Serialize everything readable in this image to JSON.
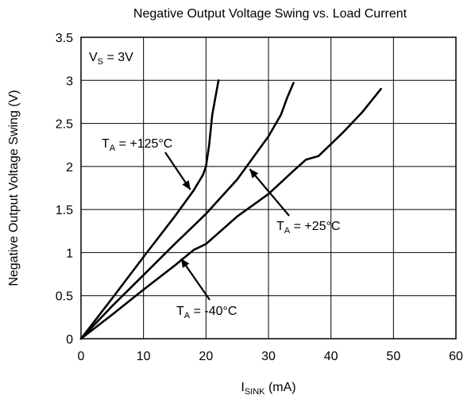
{
  "chart_data": {
    "type": "line",
    "title": "Negative Output Voltage Swing vs. Load Current",
    "xlabel": {
      "main": "I",
      "sub": "SINK",
      "rest": " (mA)"
    },
    "ylabel": "Negative Output Voltage Swing (V)",
    "xlim": [
      0,
      60
    ],
    "ylim": [
      0,
      3.5
    ],
    "xticks": [
      "0",
      "10",
      "20",
      "30",
      "40",
      "50",
      "60"
    ],
    "yticks": [
      "0",
      "0.5",
      "1",
      "1.5",
      "2",
      "2.5",
      "3",
      "3.5"
    ],
    "grid": true,
    "legend": "none",
    "condition_label": {
      "main": "V",
      "sub": "S",
      "rest": " = 3V"
    },
    "series": [
      {
        "name": "TA = +125°C",
        "x": [
          0,
          5,
          10,
          15,
          18,
          19.5,
          20,
          20.5,
          21,
          22
        ],
        "y": [
          0,
          0.47,
          0.95,
          1.42,
          1.72,
          1.9,
          2.0,
          2.25,
          2.6,
          3.0
        ]
      },
      {
        "name": "TA = +25°C",
        "x": [
          0,
          5,
          10,
          15,
          20,
          25,
          30,
          32,
          33,
          34
        ],
        "y": [
          0,
          0.38,
          0.74,
          1.1,
          1.45,
          1.85,
          2.35,
          2.6,
          2.8,
          2.97
        ]
      },
      {
        "name": "TA = -40°C",
        "x": [
          0,
          5,
          10,
          15,
          18,
          20,
          25,
          30,
          34,
          36,
          38,
          42,
          45,
          48
        ],
        "y": [
          0,
          0.28,
          0.57,
          0.85,
          1.03,
          1.1,
          1.42,
          1.68,
          1.95,
          2.08,
          2.12,
          2.4,
          2.63,
          2.9
        ]
      }
    ],
    "annotations": [
      {
        "main": "T",
        "sub": "A",
        "rest": " = +125°C",
        "arrow_to": [
          17.5,
          1.73
        ]
      },
      {
        "main": "T",
        "sub": "A",
        "rest": " = +25°C",
        "arrow_to": [
          27,
          1.97
        ]
      },
      {
        "main": "T",
        "sub": "A",
        "rest": " = -40°C",
        "arrow_to": [
          16,
          0.93
        ]
      }
    ]
  }
}
